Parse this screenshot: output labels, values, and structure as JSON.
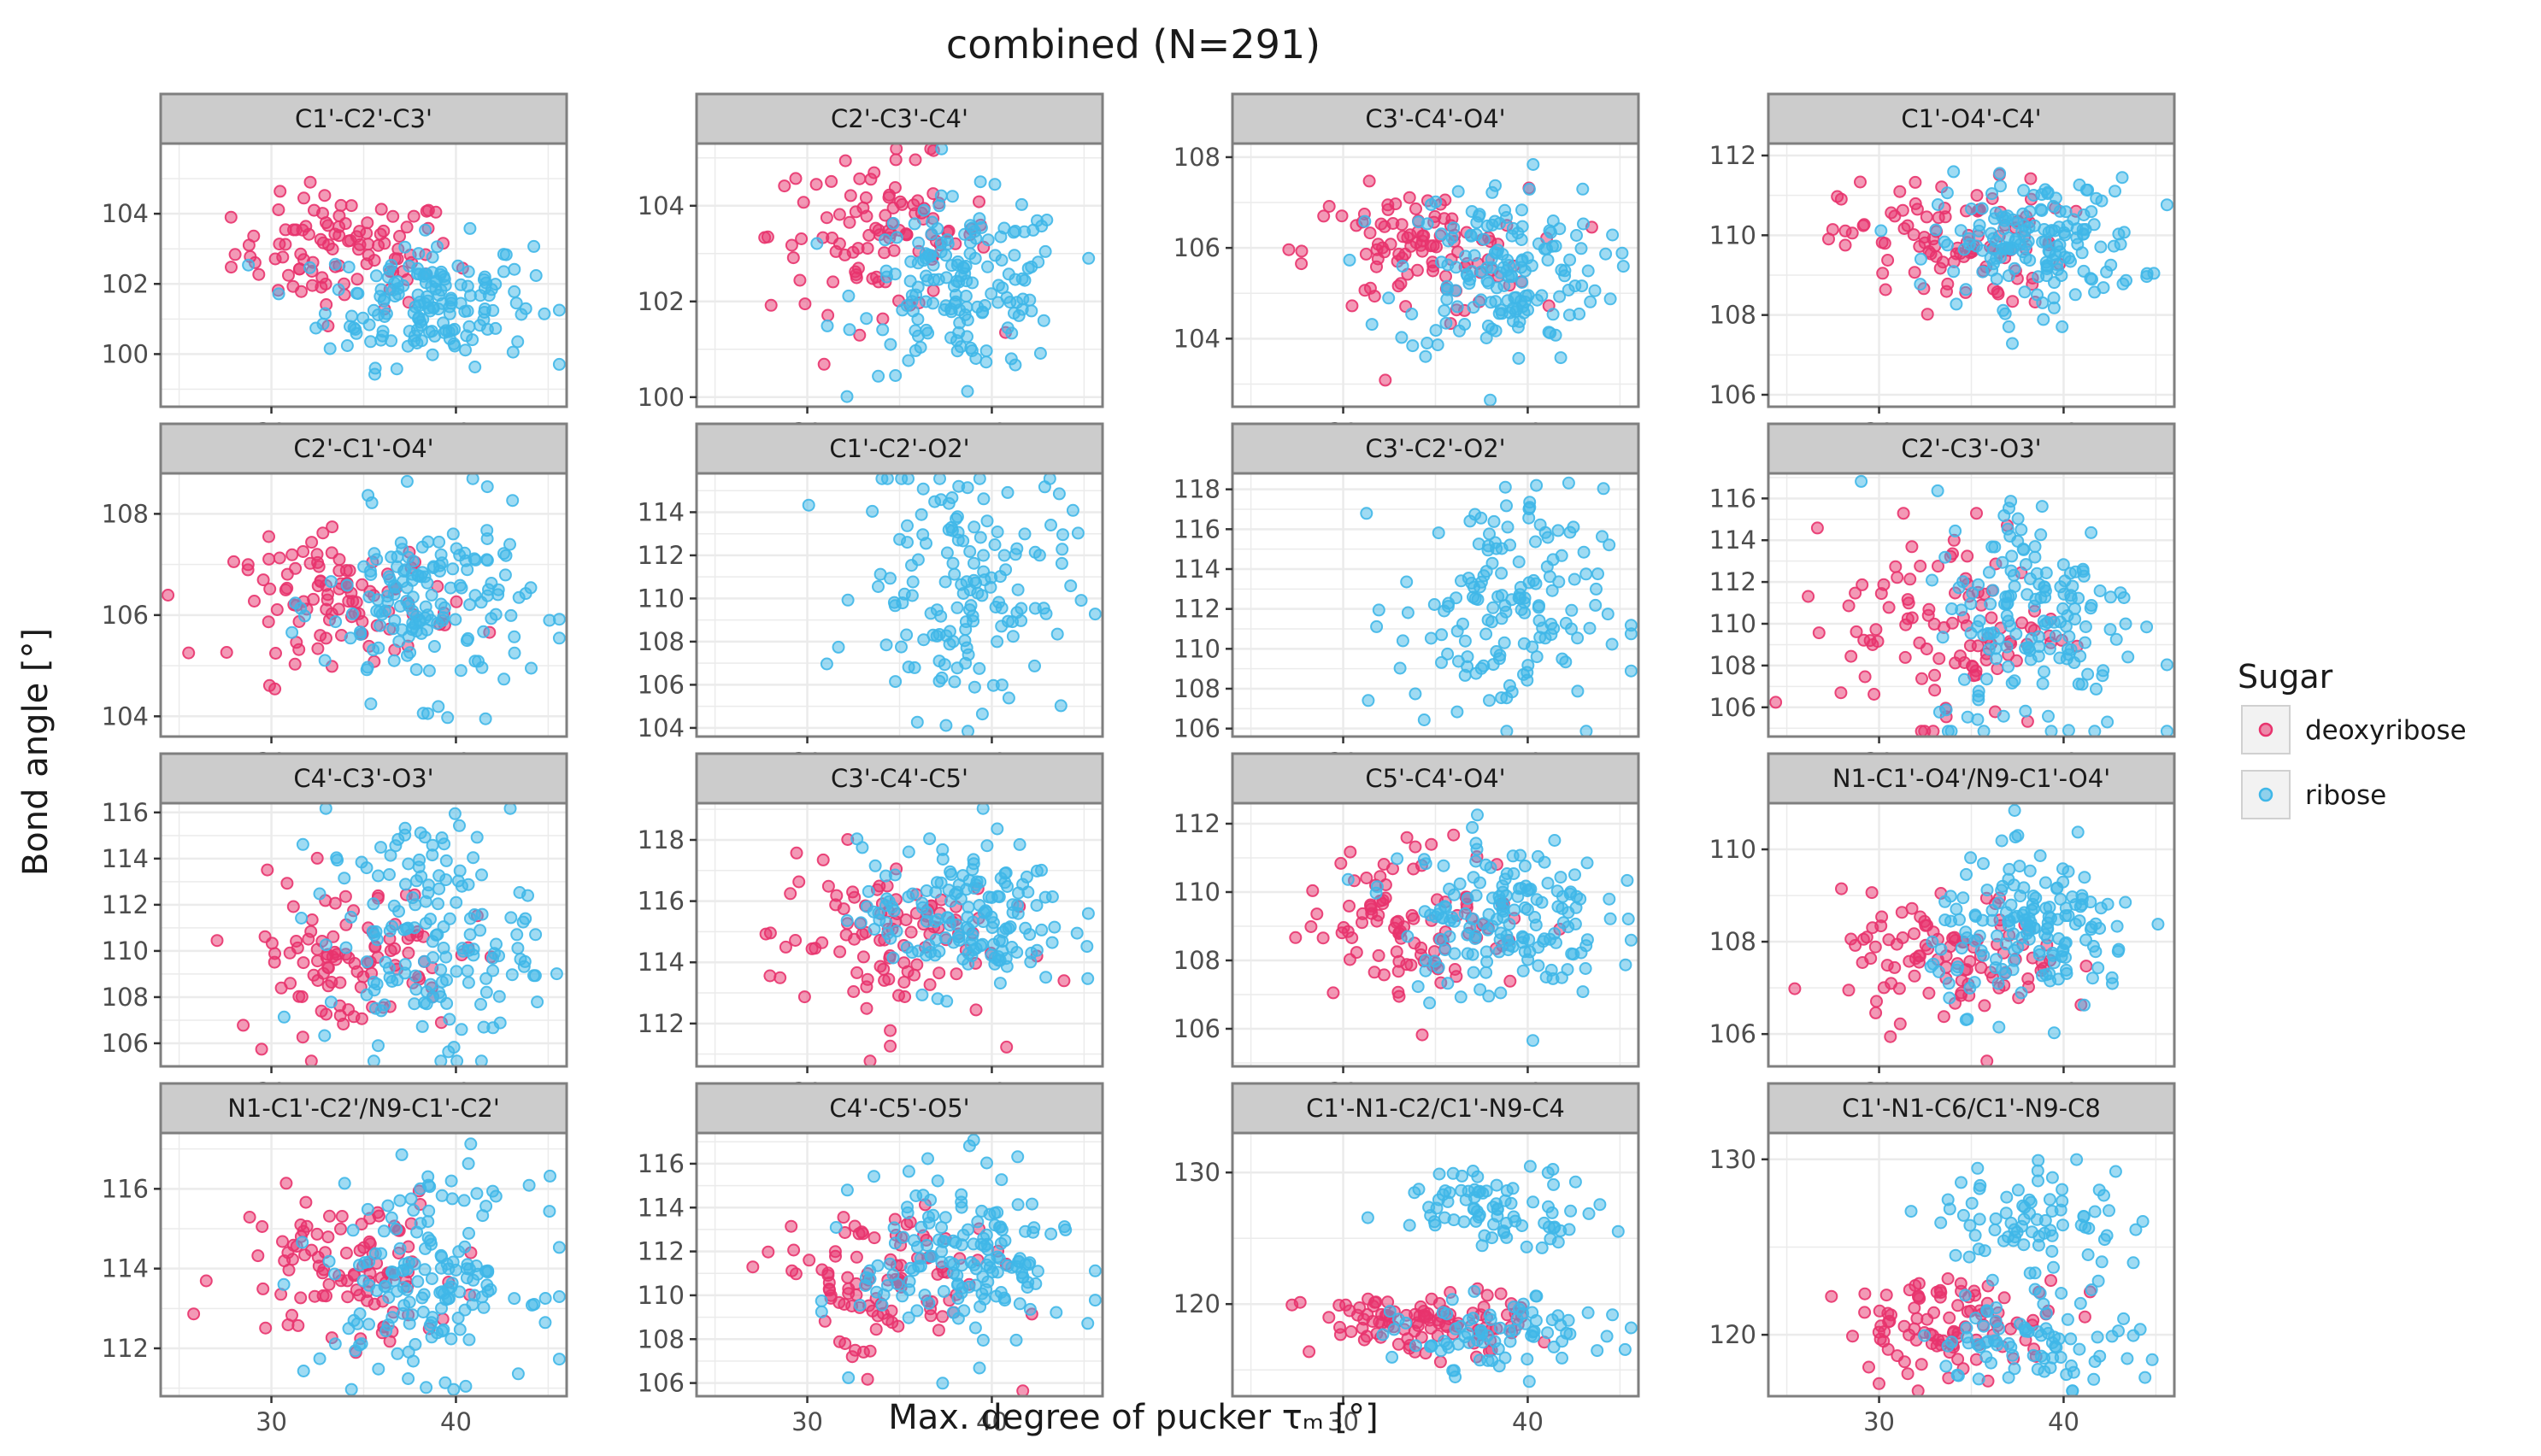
{
  "title": "combined (N=291)",
  "xlabel": "Max. degree of pucker τₘ [°]",
  "ylabel": "Bond angle [°]",
  "legend": {
    "title": "Sugar",
    "entries": [
      {
        "name": "deoxyribose",
        "color": "#e8336d"
      },
      {
        "name": "ribose",
        "color": "#3fb7e8"
      }
    ]
  },
  "colors": {
    "strip_bg": "#cccccc",
    "panel_border": "#7f7f7f",
    "grid": "#ebebeb",
    "deoxyribose": "#e8336d",
    "ribose": "#3fb7e8"
  },
  "chart_data": {
    "type": "scatter",
    "facets": "4x4",
    "x_range": [
      24,
      46
    ],
    "x_ticks": [
      30,
      40
    ],
    "series_names": [
      "deoxyribose",
      "ribose"
    ],
    "panels": [
      {
        "label": "C1'-C2'-C3'",
        "ylim": [
          98.5,
          106.0
        ],
        "yticks": [
          100,
          102,
          104
        ],
        "deoxy": {
          "mean": [
            34,
            102.9
          ],
          "sd": [
            3,
            0.8
          ],
          "n": 100
        },
        "ribo": {
          "mean": [
            38.5,
            101.5
          ],
          "sd": [
            2.8,
            0.9
          ],
          "n": 160
        }
      },
      {
        "label": "C2'-C3'-C4'",
        "ylim": [
          99.8,
          105.3
        ],
        "yticks": [
          100,
          102,
          104
        ],
        "deoxy": {
          "mean": [
            34,
            103.4
          ],
          "sd": [
            3,
            0.8
          ],
          "n": 100
        },
        "ribo": {
          "mean": [
            38.5,
            102.3
          ],
          "sd": [
            2.8,
            0.9
          ],
          "n": 160
        }
      },
      {
        "label": "C3'-C4'-O4'",
        "ylim": [
          102.5,
          108.3
        ],
        "yticks": [
          104,
          106,
          108
        ],
        "deoxy": {
          "mean": [
            34,
            105.9
          ],
          "sd": [
            3,
            0.7
          ],
          "n": 100
        },
        "ribo": {
          "mean": [
            38.5,
            105.5
          ],
          "sd": [
            2.8,
            1.0
          ],
          "n": 160
        }
      },
      {
        "label": "C1'-O4'-C4'",
        "ylim": [
          105.7,
          112.3
        ],
        "yticks": [
          106,
          108,
          110,
          112
        ],
        "deoxy": {
          "mean": [
            34,
            109.8
          ],
          "sd": [
            3,
            0.8
          ],
          "n": 100
        },
        "ribo": {
          "mean": [
            38.5,
            109.8
          ],
          "sd": [
            2.8,
            0.8
          ],
          "n": 160
        }
      },
      {
        "label": "C2'-C1'-O4'",
        "ylim": [
          103.6,
          108.8
        ],
        "yticks": [
          104,
          106,
          108
        ],
        "deoxy": {
          "mean": [
            34,
            106.3
          ],
          "sd": [
            3,
            0.6
          ],
          "n": 100
        },
        "ribo": {
          "mean": [
            38.5,
            106.2
          ],
          "sd": [
            2.8,
            0.9
          ],
          "n": 160
        }
      },
      {
        "label": "C1'-C2'-O2'",
        "ylim": [
          103.6,
          115.8
        ],
        "yticks": [
          104,
          106,
          108,
          110,
          112,
          114
        ],
        "ribo": {
          "mean": [
            38.5,
            110.5
          ],
          "sd": [
            2.8,
            3.0
          ],
          "n": 150
        }
      },
      {
        "label": "C3'-C2'-O2'",
        "ylim": [
          105.6,
          118.8
        ],
        "yticks": [
          106,
          108,
          110,
          112,
          114,
          116,
          118
        ],
        "ribo": {
          "mean": [
            38.5,
            112.0
          ],
          "sd": [
            2.8,
            3.0
          ],
          "n": 150
        }
      },
      {
        "label": "C2'-C3'-O3'",
        "ylim": [
          104.6,
          117.2
        ],
        "yticks": [
          106,
          108,
          110,
          112,
          114,
          116
        ],
        "deoxy": {
          "mean": [
            34,
            110.0
          ],
          "sd": [
            3,
            2.5
          ],
          "n": 100
        },
        "ribo": {
          "mean": [
            38.5,
            110.5
          ],
          "sd": [
            2.8,
            3.0
          ],
          "n": 160
        }
      },
      {
        "label": "C4'-C3'-O3'",
        "ylim": [
          105.0,
          116.4
        ],
        "yticks": [
          106,
          108,
          110,
          112,
          114,
          116
        ],
        "deoxy": {
          "mean": [
            34,
            109.8
          ],
          "sd": [
            3,
            1.7
          ],
          "n": 100
        },
        "ribo": {
          "mean": [
            38.5,
            110.6
          ],
          "sd": [
            2.8,
            2.6
          ],
          "n": 160
        }
      },
      {
        "label": "C3'-C4'-C5'",
        "ylim": [
          110.6,
          119.2
        ],
        "yticks": [
          112,
          114,
          116,
          118
        ],
        "deoxy": {
          "mean": [
            34,
            114.8
          ],
          "sd": [
            3,
            1.4
          ],
          "n": 100
        },
        "ribo": {
          "mean": [
            38.5,
            115.5
          ],
          "sd": [
            2.8,
            1.2
          ],
          "n": 160
        }
      },
      {
        "label": "C5'-C4'-O4'",
        "ylim": [
          104.9,
          112.6
        ],
        "yticks": [
          106,
          108,
          110,
          112
        ],
        "deoxy": {
          "mean": [
            34,
            109.2
          ],
          "sd": [
            3,
            1.1
          ],
          "n": 100
        },
        "ribo": {
          "mean": [
            38.5,
            109.3
          ],
          "sd": [
            2.8,
            1.2
          ],
          "n": 160
        }
      },
      {
        "label": "N1-C1'-O4'/N9-C1'-O4'",
        "ylim": [
          105.3,
          111.0
        ],
        "yticks": [
          106,
          108,
          110
        ],
        "deoxy": {
          "mean": [
            34,
            107.6
          ],
          "sd": [
            3,
            0.7
          ],
          "n": 100
        },
        "ribo": {
          "mean": [
            38.5,
            108.2
          ],
          "sd": [
            2.8,
            0.8
          ],
          "n": 160
        }
      },
      {
        "label": "N1-C1'-C2'/N9-C1'-C2'",
        "ylim": [
          110.8,
          117.4
        ],
        "yticks": [
          112,
          114,
          116
        ],
        "deoxy": {
          "mean": [
            34,
            114.0
          ],
          "sd": [
            3,
            1.0
          ],
          "n": 100
        },
        "ribo": {
          "mean": [
            38.5,
            113.8
          ],
          "sd": [
            2.8,
            1.2
          ],
          "n": 160
        }
      },
      {
        "label": "C4'-C5'-O5'",
        "ylim": [
          105.4,
          117.4
        ],
        "yticks": [
          106,
          108,
          110,
          112,
          114,
          116
        ],
        "deoxy": {
          "mean": [
            34,
            110.5
          ],
          "sd": [
            3,
            1.8
          ],
          "n": 100
        },
        "ribo": {
          "mean": [
            38.5,
            111.6
          ],
          "sd": [
            2.8,
            2.0
          ],
          "n": 160
        }
      },
      {
        "label": "C1'-N1-C2/C1'-N9-C4",
        "ylim": [
          113.0,
          133.0
        ],
        "yticks": [
          120,
          130
        ],
        "deoxy": {
          "mean": [
            34,
            118.5
          ],
          "sd": [
            3,
            1.2
          ],
          "n": 100
        },
        "ribo_clusters": [
          {
            "mean": [
              38.5,
              117.5
            ],
            "sd": [
              2.8,
              1.4
            ],
            "n": 80
          },
          {
            "mean": [
              38.5,
              127.5
            ],
            "sd": [
              2.8,
              1.4
            ],
            "n": 80
          }
        ]
      },
      {
        "label": "C1'-N1-C6/C1'-N9-C8",
        "ylim": [
          116.5,
          131.5
        ],
        "yticks": [
          120,
          130
        ],
        "deoxy": {
          "mean": [
            34,
            120.5
          ],
          "sd": [
            3,
            1.4
          ],
          "n": 100
        },
        "ribo_clusters": [
          {
            "mean": [
              38.5,
              119.8
            ],
            "sd": [
              2.8,
              1.4
            ],
            "n": 80
          },
          {
            "mean": [
              38.5,
              126.5
            ],
            "sd": [
              2.8,
              1.8
            ],
            "n": 80
          }
        ]
      }
    ]
  }
}
